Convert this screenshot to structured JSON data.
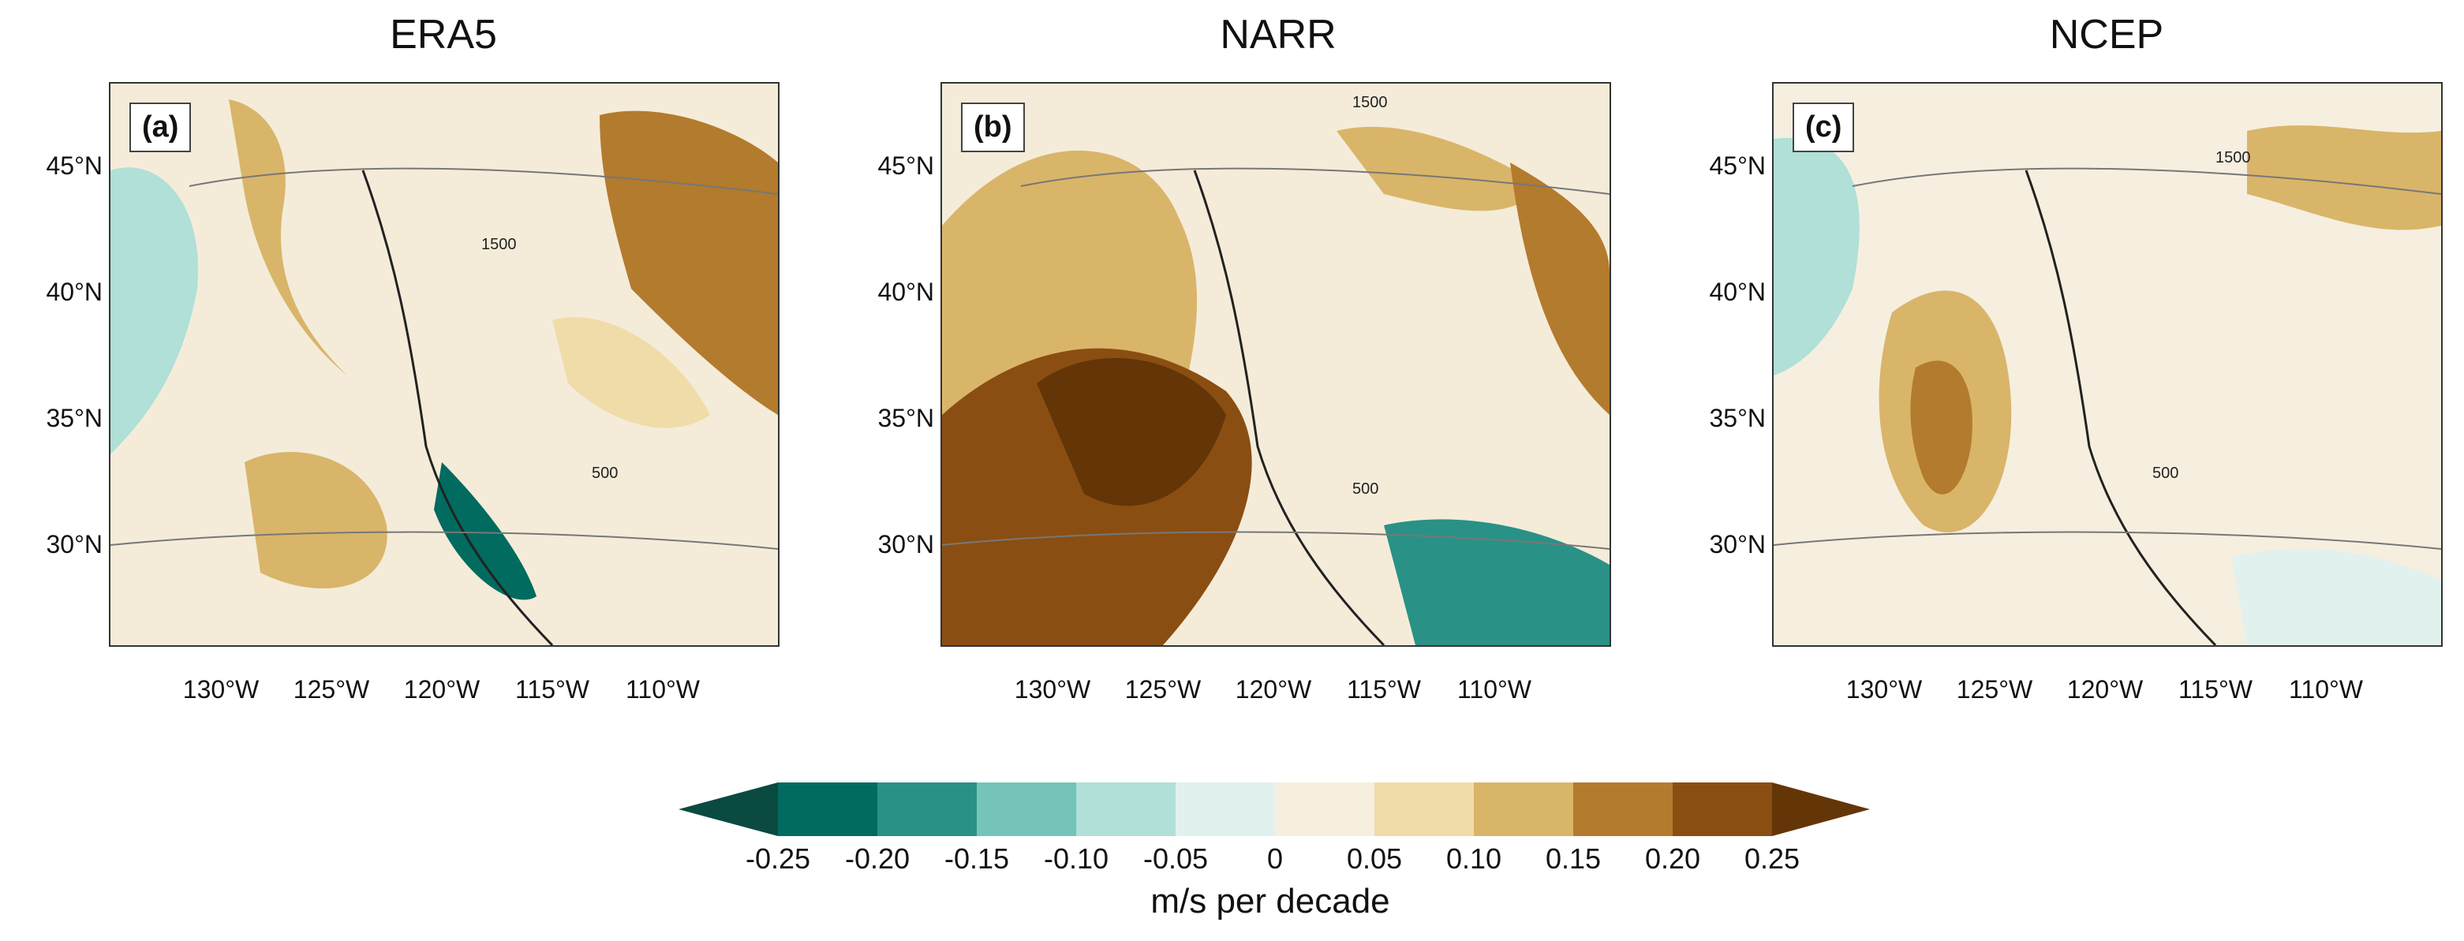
{
  "panels": [
    {
      "title": "ERA5",
      "label": "(a)"
    },
    {
      "title": "NARR",
      "label": "(b)"
    },
    {
      "title": "NCEP",
      "label": "(c)"
    }
  ],
  "lat_labels": [
    "45°N",
    "40°N",
    "35°N",
    "30°N"
  ],
  "lon_labels": [
    "130°W",
    "125°W",
    "120°W",
    "115°W",
    "110°W"
  ],
  "contour_labels": [
    "500",
    "1500"
  ],
  "colorbar": {
    "ticks": [
      "-0.25",
      "-0.20",
      "-0.15",
      "-0.10",
      "-0.05",
      "0",
      "0.05",
      "0.10",
      "0.15",
      "0.20",
      "0.25"
    ],
    "unit_label": "m/s per decade",
    "colors": [
      "#0b4a40",
      "#016b5f",
      "#2a9187",
      "#74c4ba",
      "#b0e0d8",
      "#e1f1ee",
      "#f6efdf",
      "#f0dca8",
      "#d9b56a",
      "#b37b2d",
      "#8a4e12",
      "#643507"
    ]
  }
}
